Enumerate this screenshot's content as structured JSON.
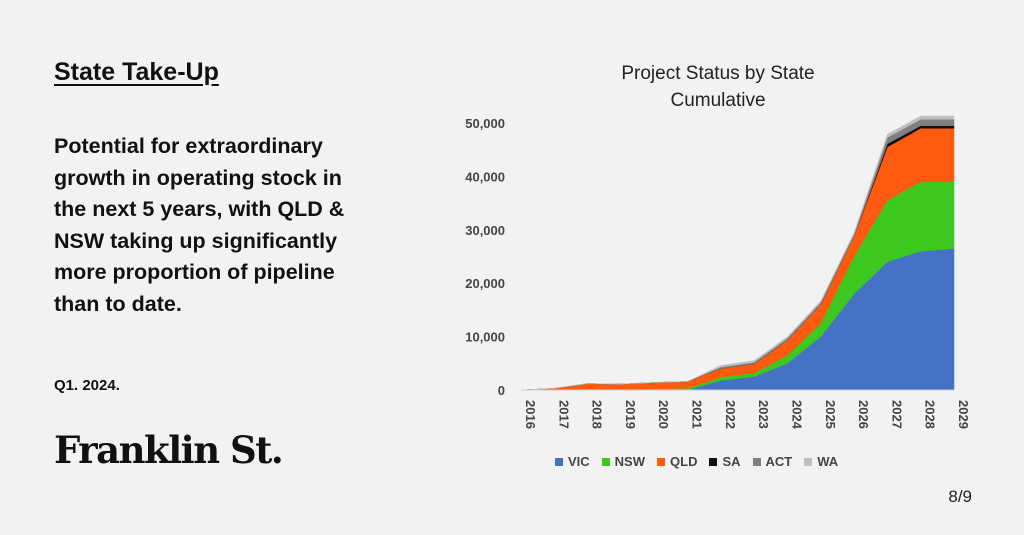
{
  "slide": {
    "section_title": "State Take-Up",
    "body_text": "Potential for extraordinary growth in operating stock in the next 5 years, with QLD & NSW taking up significantly more proportion of pipeline than to date.",
    "period": "Q1. 2024.",
    "brand": "Franklin St.",
    "page_number": "8/9"
  },
  "chart_data": {
    "type": "area",
    "stacked": true,
    "title_lines": [
      "Project Status by State",
      "Cumulative"
    ],
    "x": [
      "2016",
      "2017",
      "2018",
      "2019",
      "2020",
      "2021",
      "2022",
      "2023",
      "2024",
      "2025",
      "2026",
      "2027",
      "2028",
      "2029"
    ],
    "ylim": [
      0,
      50000
    ],
    "yticks": [
      0,
      10000,
      20000,
      30000,
      40000,
      50000
    ],
    "ytick_labels": [
      "0",
      "10,000",
      "20,000",
      "30,000",
      "40,000",
      "50,000"
    ],
    "grid": false,
    "legend_position": "bottom",
    "series": [
      {
        "name": "VIC",
        "color": "#4472c4",
        "values": [
          0,
          0,
          0,
          0,
          0,
          0,
          1800,
          2500,
          5000,
          10000,
          18000,
          24000,
          26000,
          26500
        ]
      },
      {
        "name": "NSW",
        "color": "#3cc81e",
        "values": [
          0,
          0,
          0,
          0,
          200,
          300,
          600,
          700,
          1500,
          2500,
          7000,
          11500,
          13000,
          12500
        ]
      },
      {
        "name": "QLD",
        "color": "#ff5a0f",
        "values": [
          0,
          300,
          1200,
          1100,
          1200,
          1300,
          1600,
          1700,
          2800,
          3500,
          3800,
          10000,
          10000,
          10000
        ]
      },
      {
        "name": "SA",
        "color": "#111111",
        "values": [
          0,
          0,
          0,
          0,
          0,
          0,
          0,
          0,
          0,
          0,
          0,
          600,
          500,
          500
        ]
      },
      {
        "name": "ACT",
        "color": "#7f7f7f",
        "values": [
          0,
          0,
          0,
          0,
          0,
          0,
          300,
          300,
          400,
          400,
          400,
          1200,
          1200,
          1200
        ]
      },
      {
        "name": "WA",
        "color": "#bfbfbf",
        "values": [
          0,
          0,
          0,
          0,
          0,
          0,
          300,
          300,
          300,
          300,
          300,
          600,
          600,
          600
        ]
      }
    ]
  }
}
